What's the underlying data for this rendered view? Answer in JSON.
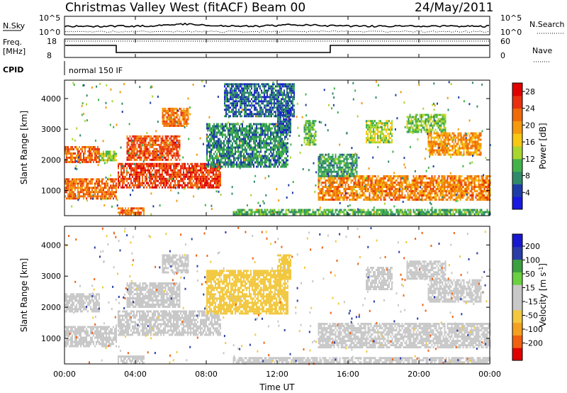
{
  "header": {
    "title": "Christmas Valley West (fitACF)",
    "beam": "Beam 00",
    "date": "24/May/2011"
  },
  "top_panels": {
    "nsky_label": "N.Sky",
    "nsearch_label": "N.Search",
    "nsky_ticks": [
      "10^5",
      "10^0"
    ],
    "nsearch_ticks": [
      "10^5",
      "10^0"
    ],
    "freq_label_1": "Freq.",
    "freq_label_2": "[MHz]",
    "freq_ticks": [
      "18",
      "8"
    ],
    "nave_label": "Nave",
    "nave_ticks": [
      "60",
      "0"
    ],
    "cpid_label": "CPID",
    "cpid_value": "normal 150 IF"
  },
  "colors": {
    "power_scale": [
      "#1818e0",
      "#1e3ca8",
      "#2f8a6a",
      "#43b24a",
      "#a8d630",
      "#f6c814",
      "#f49a0e",
      "#f06a0a",
      "#e83010",
      "#e00000"
    ],
    "velocity_scale": [
      "#e00000",
      "#f06010",
      "#f4a020",
      "#f2c840",
      "#c8c8c8",
      "#c8c8c8",
      "#6ad040",
      "#3aa040",
      "#2a3ca8",
      "#1818d0"
    ]
  },
  "chart_data": [
    {
      "type": "heatmap",
      "name": "power",
      "xlabel": "Time UT",
      "ylabel": "Slant Range [km]",
      "xlim": [
        0,
        24
      ],
      "ylim": [
        180,
        4600
      ],
      "x_ticks": [
        "00:00",
        "04:00",
        "08:00",
        "12:00",
        "16:00",
        "20:00",
        "00:00"
      ],
      "y_ticks": [
        "1000",
        "2000",
        "3000",
        "4000"
      ],
      "colorbar_label": "Power [dB]",
      "colorbar_ticks": [
        "28",
        "24",
        "20",
        "16",
        "12",
        "8",
        "4"
      ],
      "colorbar_range": [
        0,
        30
      ],
      "regions": [
        {
          "t0": 0.0,
          "t1": 2.9,
          "r0": 750,
          "r1": 1400,
          "value": 22
        },
        {
          "t0": 0.0,
          "t1": 2.0,
          "r0": 1900,
          "r1": 2450,
          "value": 23
        },
        {
          "t0": 2.0,
          "t1": 2.9,
          "r0": 2000,
          "r1": 2300,
          "value": 13
        },
        {
          "t0": 3.0,
          "t1": 8.8,
          "r0": 1100,
          "r1": 1900,
          "value": 25
        },
        {
          "t0": 3.5,
          "t1": 6.5,
          "r0": 2000,
          "r1": 2800,
          "value": 24
        },
        {
          "t0": 5.5,
          "t1": 7.0,
          "r0": 3100,
          "r1": 3700,
          "value": 22
        },
        {
          "t0": 8.0,
          "t1": 12.6,
          "r0": 1800,
          "r1": 3200,
          "value": 8
        },
        {
          "t0": 9.0,
          "t1": 13.0,
          "r0": 3400,
          "r1": 4500,
          "value": 6
        },
        {
          "t0": 12.0,
          "t1": 12.8,
          "r0": 2900,
          "r1": 3700,
          "value": 5
        },
        {
          "t0": 13.5,
          "t1": 14.2,
          "r0": 2500,
          "r1": 3300,
          "value": 11
        },
        {
          "t0": 14.3,
          "t1": 24.0,
          "r0": 700,
          "r1": 1500,
          "value": 21
        },
        {
          "t0": 14.3,
          "t1": 16.5,
          "r0": 1500,
          "r1": 2200,
          "value": 9
        },
        {
          "t0": 17.0,
          "t1": 18.5,
          "r0": 2600,
          "r1": 3300,
          "value": 14
        },
        {
          "t0": 19.3,
          "t1": 21.5,
          "r0": 2900,
          "r1": 3500,
          "value": 12
        },
        {
          "t0": 20.5,
          "t1": 23.5,
          "r0": 2200,
          "r1": 2900,
          "value": 20
        },
        {
          "t0": 3.0,
          "t1": 4.5,
          "r0": 200,
          "r1": 450,
          "value": 22
        },
        {
          "t0": 9.5,
          "t1": 24.0,
          "r0": 200,
          "r1": 400,
          "value": 10
        }
      ]
    },
    {
      "type": "heatmap",
      "name": "velocity",
      "xlabel": "Time UT",
      "ylabel": "Slant Range [km]",
      "xlim": [
        0,
        24
      ],
      "ylim": [
        180,
        4600
      ],
      "x_ticks": [
        "00:00",
        "04:00",
        "08:00",
        "12:00",
        "16:00",
        "20:00",
        "00:00"
      ],
      "y_ticks": [
        "1000",
        "2000",
        "3000",
        "4000"
      ],
      "colorbar_label": "Velocity [m s^-1]",
      "colorbar_ticks": [
        "200",
        "100",
        "50",
        "15",
        "-15",
        "-50",
        "-100",
        "-200"
      ],
      "colorbar_range": [
        -250,
        250
      ],
      "regions": [
        {
          "t0": 0.0,
          "t1": 2.9,
          "r0": 750,
          "r1": 1400,
          "value": 0
        },
        {
          "t0": 0.0,
          "t1": 2.0,
          "r0": 1900,
          "r1": 2450,
          "value": 0
        },
        {
          "t0": 3.0,
          "t1": 8.8,
          "r0": 1100,
          "r1": 1900,
          "value": 0
        },
        {
          "t0": 3.5,
          "t1": 6.5,
          "r0": 2000,
          "r1": 2800,
          "value": -40
        },
        {
          "t0": 5.5,
          "t1": 7.0,
          "r0": 3100,
          "r1": 3700,
          "value": -40
        },
        {
          "t0": 8.0,
          "t1": 12.6,
          "r0": 1800,
          "r1": 3200,
          "value": -60
        },
        {
          "t0": 12.0,
          "t1": 12.8,
          "r0": 2900,
          "r1": 3700,
          "value": -60
        },
        {
          "t0": 14.3,
          "t1": 24.0,
          "r0": 700,
          "r1": 1500,
          "value": 0
        },
        {
          "t0": 17.0,
          "t1": 18.5,
          "r0": 2600,
          "r1": 3300,
          "value": 0
        },
        {
          "t0": 19.3,
          "t1": 21.5,
          "r0": 2900,
          "r1": 3500,
          "value": 0
        },
        {
          "t0": 20.5,
          "t1": 23.5,
          "r0": 2200,
          "r1": 2900,
          "value": 0
        },
        {
          "t0": 3.0,
          "t1": 4.5,
          "r0": 200,
          "r1": 450,
          "value": 40
        },
        {
          "t0": 9.5,
          "t1": 24.0,
          "r0": 200,
          "r1": 400,
          "value": 30
        }
      ]
    }
  ]
}
